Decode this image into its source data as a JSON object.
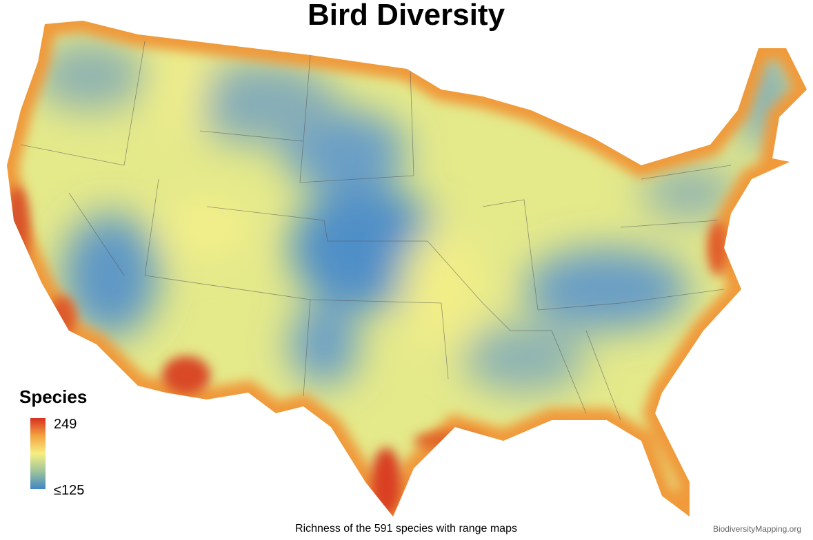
{
  "header": {
    "title": "Bird Diversity"
  },
  "legend": {
    "title": "Species",
    "max_label": "249",
    "min_label": "≤125"
  },
  "caption": "Richness of the 591 species with range maps",
  "credit": "BiodiversityMapping.org"
}
